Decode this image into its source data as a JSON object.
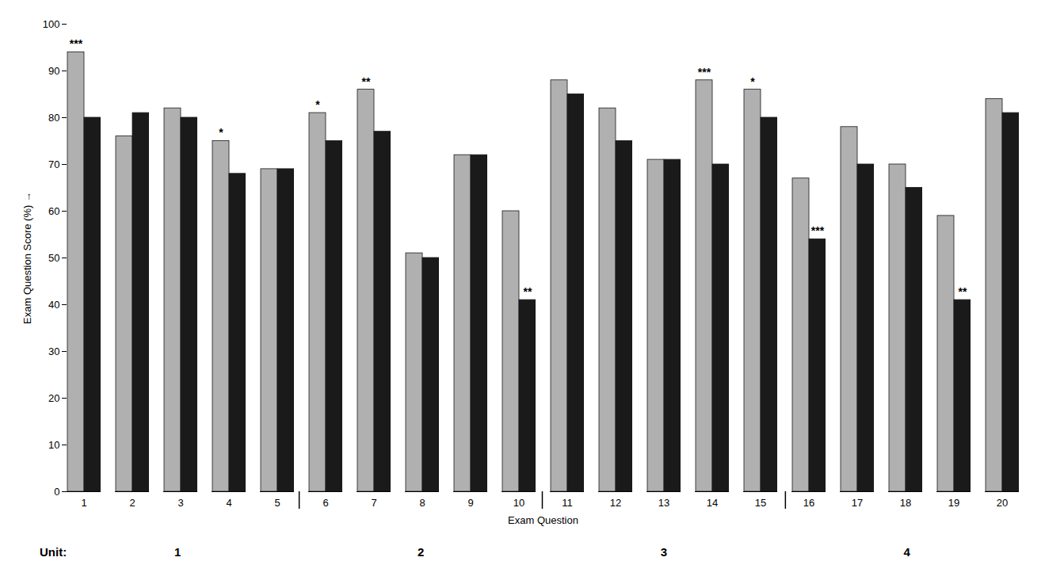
{
  "chart_data": {
    "type": "bar",
    "x_label": "Exam Question",
    "y_label": "Exam Question Score (%)",
    "categories": [
      "1",
      "2",
      "3",
      "4",
      "5",
      "6",
      "7",
      "8",
      "9",
      "10",
      "11",
      "12",
      "13",
      "14",
      "15",
      "16",
      "17",
      "18",
      "19",
      "20"
    ],
    "series": [
      {
        "color": "#b0b0b0",
        "values": [
          94,
          76,
          82,
          75,
          69,
          81,
          86,
          51,
          72,
          60,
          88,
          82,
          71,
          88,
          86,
          67,
          78,
          70,
          59,
          84
        ],
        "annotations": [
          {
            "x": "1",
            "text": "***"
          },
          {
            "x": "4",
            "text": "*"
          },
          {
            "x": "6",
            "text": "*"
          },
          {
            "x": "7",
            "text": "**"
          },
          {
            "x": "14",
            "text": "***"
          },
          {
            "x": "15",
            "text": "*"
          }
        ]
      },
      {
        "color": "#1a1a1a",
        "values": [
          80,
          81,
          80,
          68,
          69,
          75,
          77,
          50,
          72,
          41,
          85,
          75,
          71,
          70,
          80,
          54,
          70,
          65,
          41,
          81
        ],
        "annotations": [
          {
            "x": "10",
            "text": "**"
          },
          {
            "x": "16",
            "text": "***"
          },
          {
            "x": "19",
            "text": "**"
          }
        ]
      }
    ],
    "group_label": "Unit:",
    "groups": [
      {
        "label": "1",
        "categories": [
          "1",
          "2",
          "3",
          "4",
          "5"
        ]
      },
      {
        "label": "2",
        "categories": [
          "6",
          "7",
          "8",
          "9",
          "10"
        ]
      },
      {
        "label": "3",
        "categories": [
          "11",
          "12",
          "13",
          "14",
          "15"
        ]
      },
      {
        "label": "4",
        "categories": [
          "16",
          "17",
          "18",
          "19",
          "20"
        ]
      }
    ],
    "ylim": [
      0,
      100
    ],
    "yticks": [
      0,
      10,
      20,
      30,
      40,
      50,
      60,
      70,
      80,
      90,
      100
    ],
    "grid": false
  }
}
